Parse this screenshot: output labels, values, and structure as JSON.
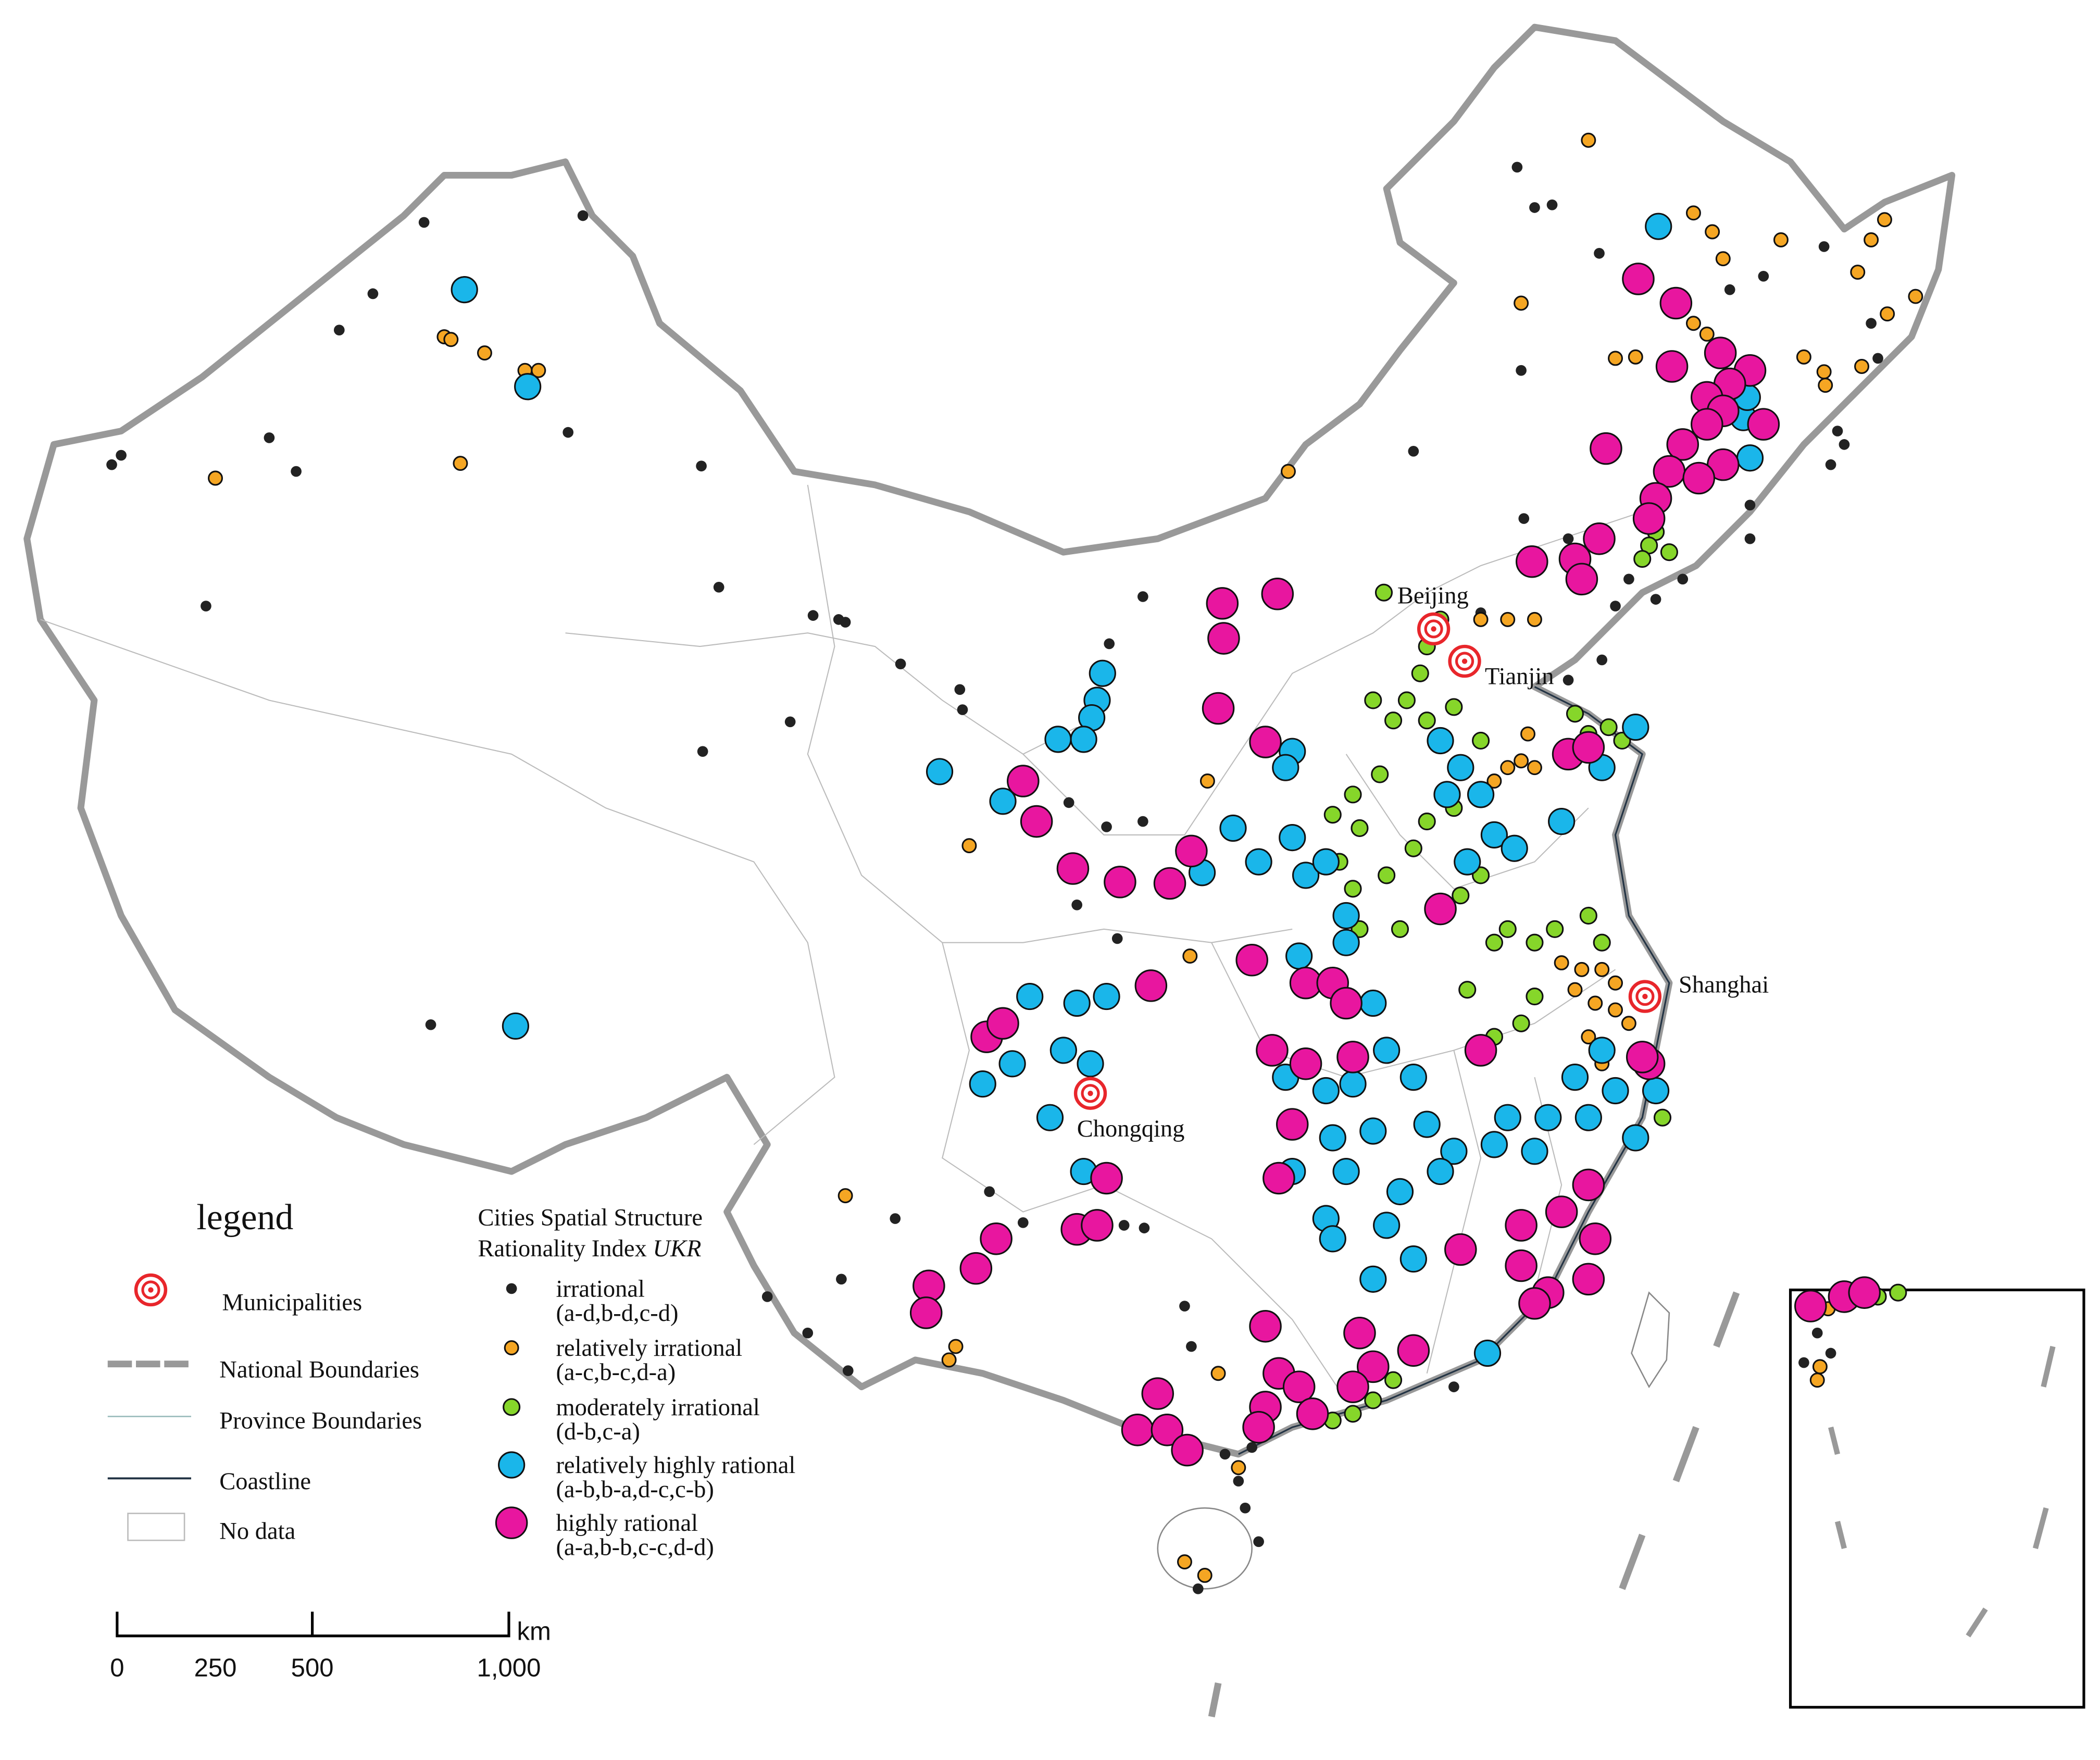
{
  "legend": {
    "title": "legend",
    "items": [
      {
        "label": "Municipalities"
      },
      {
        "label": "National Boundaries"
      },
      {
        "label": "Province Boundaries"
      },
      {
        "label": "Coastline"
      },
      {
        "label": "No data"
      }
    ]
  },
  "ukr_legend": {
    "title_lines": [
      "Cities Spatial Structure",
      "Rationality Index "
    ],
    "title_italic": "UKR",
    "classes": [
      {
        "name": "irrational",
        "codes": "(a-d,b-d,c-d)",
        "color": "#222222"
      },
      {
        "name": "relatively irrational",
        "codes": "(a-c,b-c,d-a)",
        "color": "#f5a623"
      },
      {
        "name": "moderately irrational",
        "codes": "(d-b,c-a)",
        "color": "#86d62a"
      },
      {
        "name": "relatively highly rational",
        "codes": "(a-b,b-a,d-c,c-b)",
        "color": "#1ab6ea"
      },
      {
        "name": "highly rational",
        "codes": "(a-a,b-b,c-c,d-d)",
        "color": "#e8169f"
      }
    ]
  },
  "cities": [
    {
      "name": "Beijing"
    },
    {
      "name": "Tianjin"
    },
    {
      "name": "Shanghai"
    },
    {
      "name": "Chongqing"
    }
  ],
  "scale_bar": {
    "labels": [
      "0",
      "250",
      "500",
      "1,000"
    ],
    "unit": "km"
  }
}
